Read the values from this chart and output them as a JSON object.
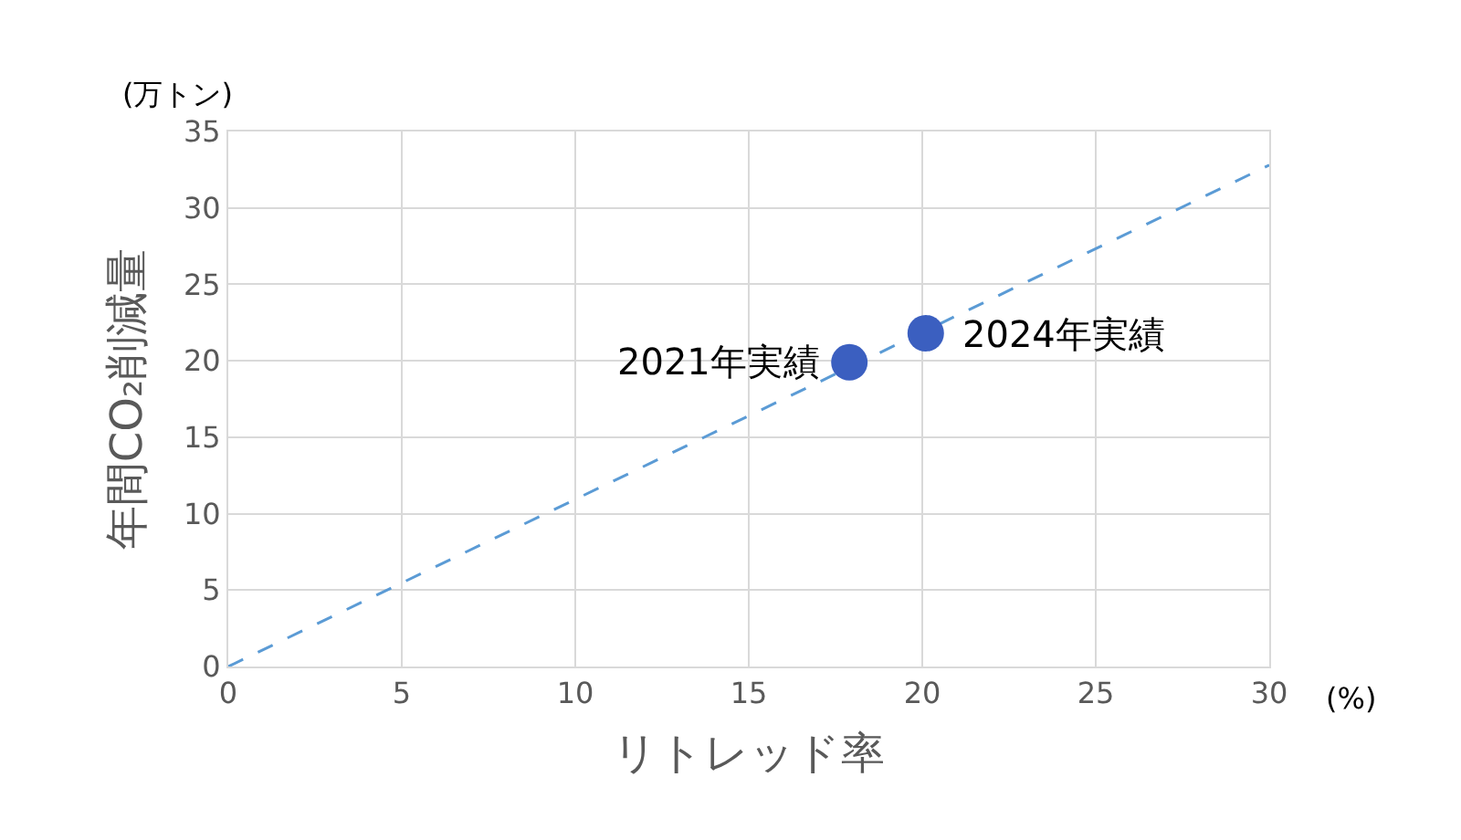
{
  "chart_data": {
    "type": "scatter",
    "xlabel": "リトレッド率",
    "ylabel": "年間CO₂削減量",
    "xlim": [
      0,
      30
    ],
    "xticks": [
      0,
      5,
      10,
      15,
      20,
      25,
      30
    ],
    "ylim": [
      0,
      35
    ],
    "yticks": [
      0,
      5,
      10,
      15,
      20,
      25,
      30,
      35
    ],
    "grid": true,
    "legend": false,
    "series": [
      {
        "type": "line",
        "color": "#5b9bd5",
        "line_style": "dashed",
        "marker": "none",
        "x": [
          0,
          30
        ],
        "values": [
          0,
          32.8
        ]
      },
      {
        "color": "#3b5fc0",
        "marker": "circle",
        "x": [
          17.9,
          20.1
        ],
        "values": [
          19.9,
          21.8
        ]
      }
    ],
    "annotations": [
      "(万トン)",
      "(%)",
      {
        "text": "2021年実績",
        "x": 17.9,
        "y": 19.9
      },
      {
        "text": "2024年実績",
        "x": 20.1,
        "y": 21.8
      }
    ]
  }
}
